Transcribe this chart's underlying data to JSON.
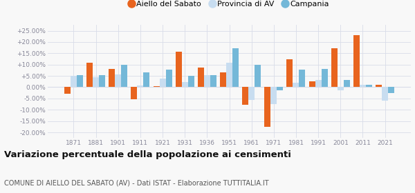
{
  "years": [
    1871,
    1881,
    1901,
    1911,
    1921,
    1931,
    1936,
    1951,
    1961,
    1971,
    1981,
    1991,
    2001,
    2011,
    2021
  ],
  "aiello": [
    -3.0,
    10.8,
    8.0,
    -5.2,
    0.5,
    15.7,
    8.8,
    6.5,
    -7.8,
    -17.5,
    12.5,
    2.7,
    17.2,
    23.0,
    1.0
  ],
  "provincia": [
    5.0,
    4.5,
    5.5,
    0.8,
    3.8,
    2.2,
    5.3,
    10.8,
    -5.5,
    -7.5,
    2.0,
    3.3,
    -1.5,
    1.0,
    -6.0
  ],
  "campania": [
    5.2,
    5.2,
    9.8,
    6.5,
    7.8,
    5.0,
    5.3,
    17.2,
    9.8,
    -1.5,
    7.8,
    8.0,
    3.2,
    1.0,
    -2.5
  ],
  "color_aiello": "#e8641e",
  "color_provincia": "#c8ddf0",
  "color_campania": "#74b8d8",
  "title": "Variazione percentuale della popolazione ai censimenti",
  "subtitle": "COMUNE DI AIELLO DEL SABATO (AV) - Dati ISTAT - Elaborazione TUTTITALIA.IT",
  "legend_labels": [
    "Aiello del Sabato",
    "Provincia di AV",
    "Campania"
  ],
  "yticks": [
    -20,
    -15,
    -10,
    -5,
    0,
    5,
    10,
    15,
    20,
    25
  ],
  "ylim": [
    -22.5,
    27.5
  ],
  "background_color": "#f8f8f8",
  "grid_color": "#d8dce8",
  "tick_color": "#888899",
  "title_fontsize": 9.5,
  "subtitle_fontsize": 7.0,
  "tick_fontsize": 6.5
}
